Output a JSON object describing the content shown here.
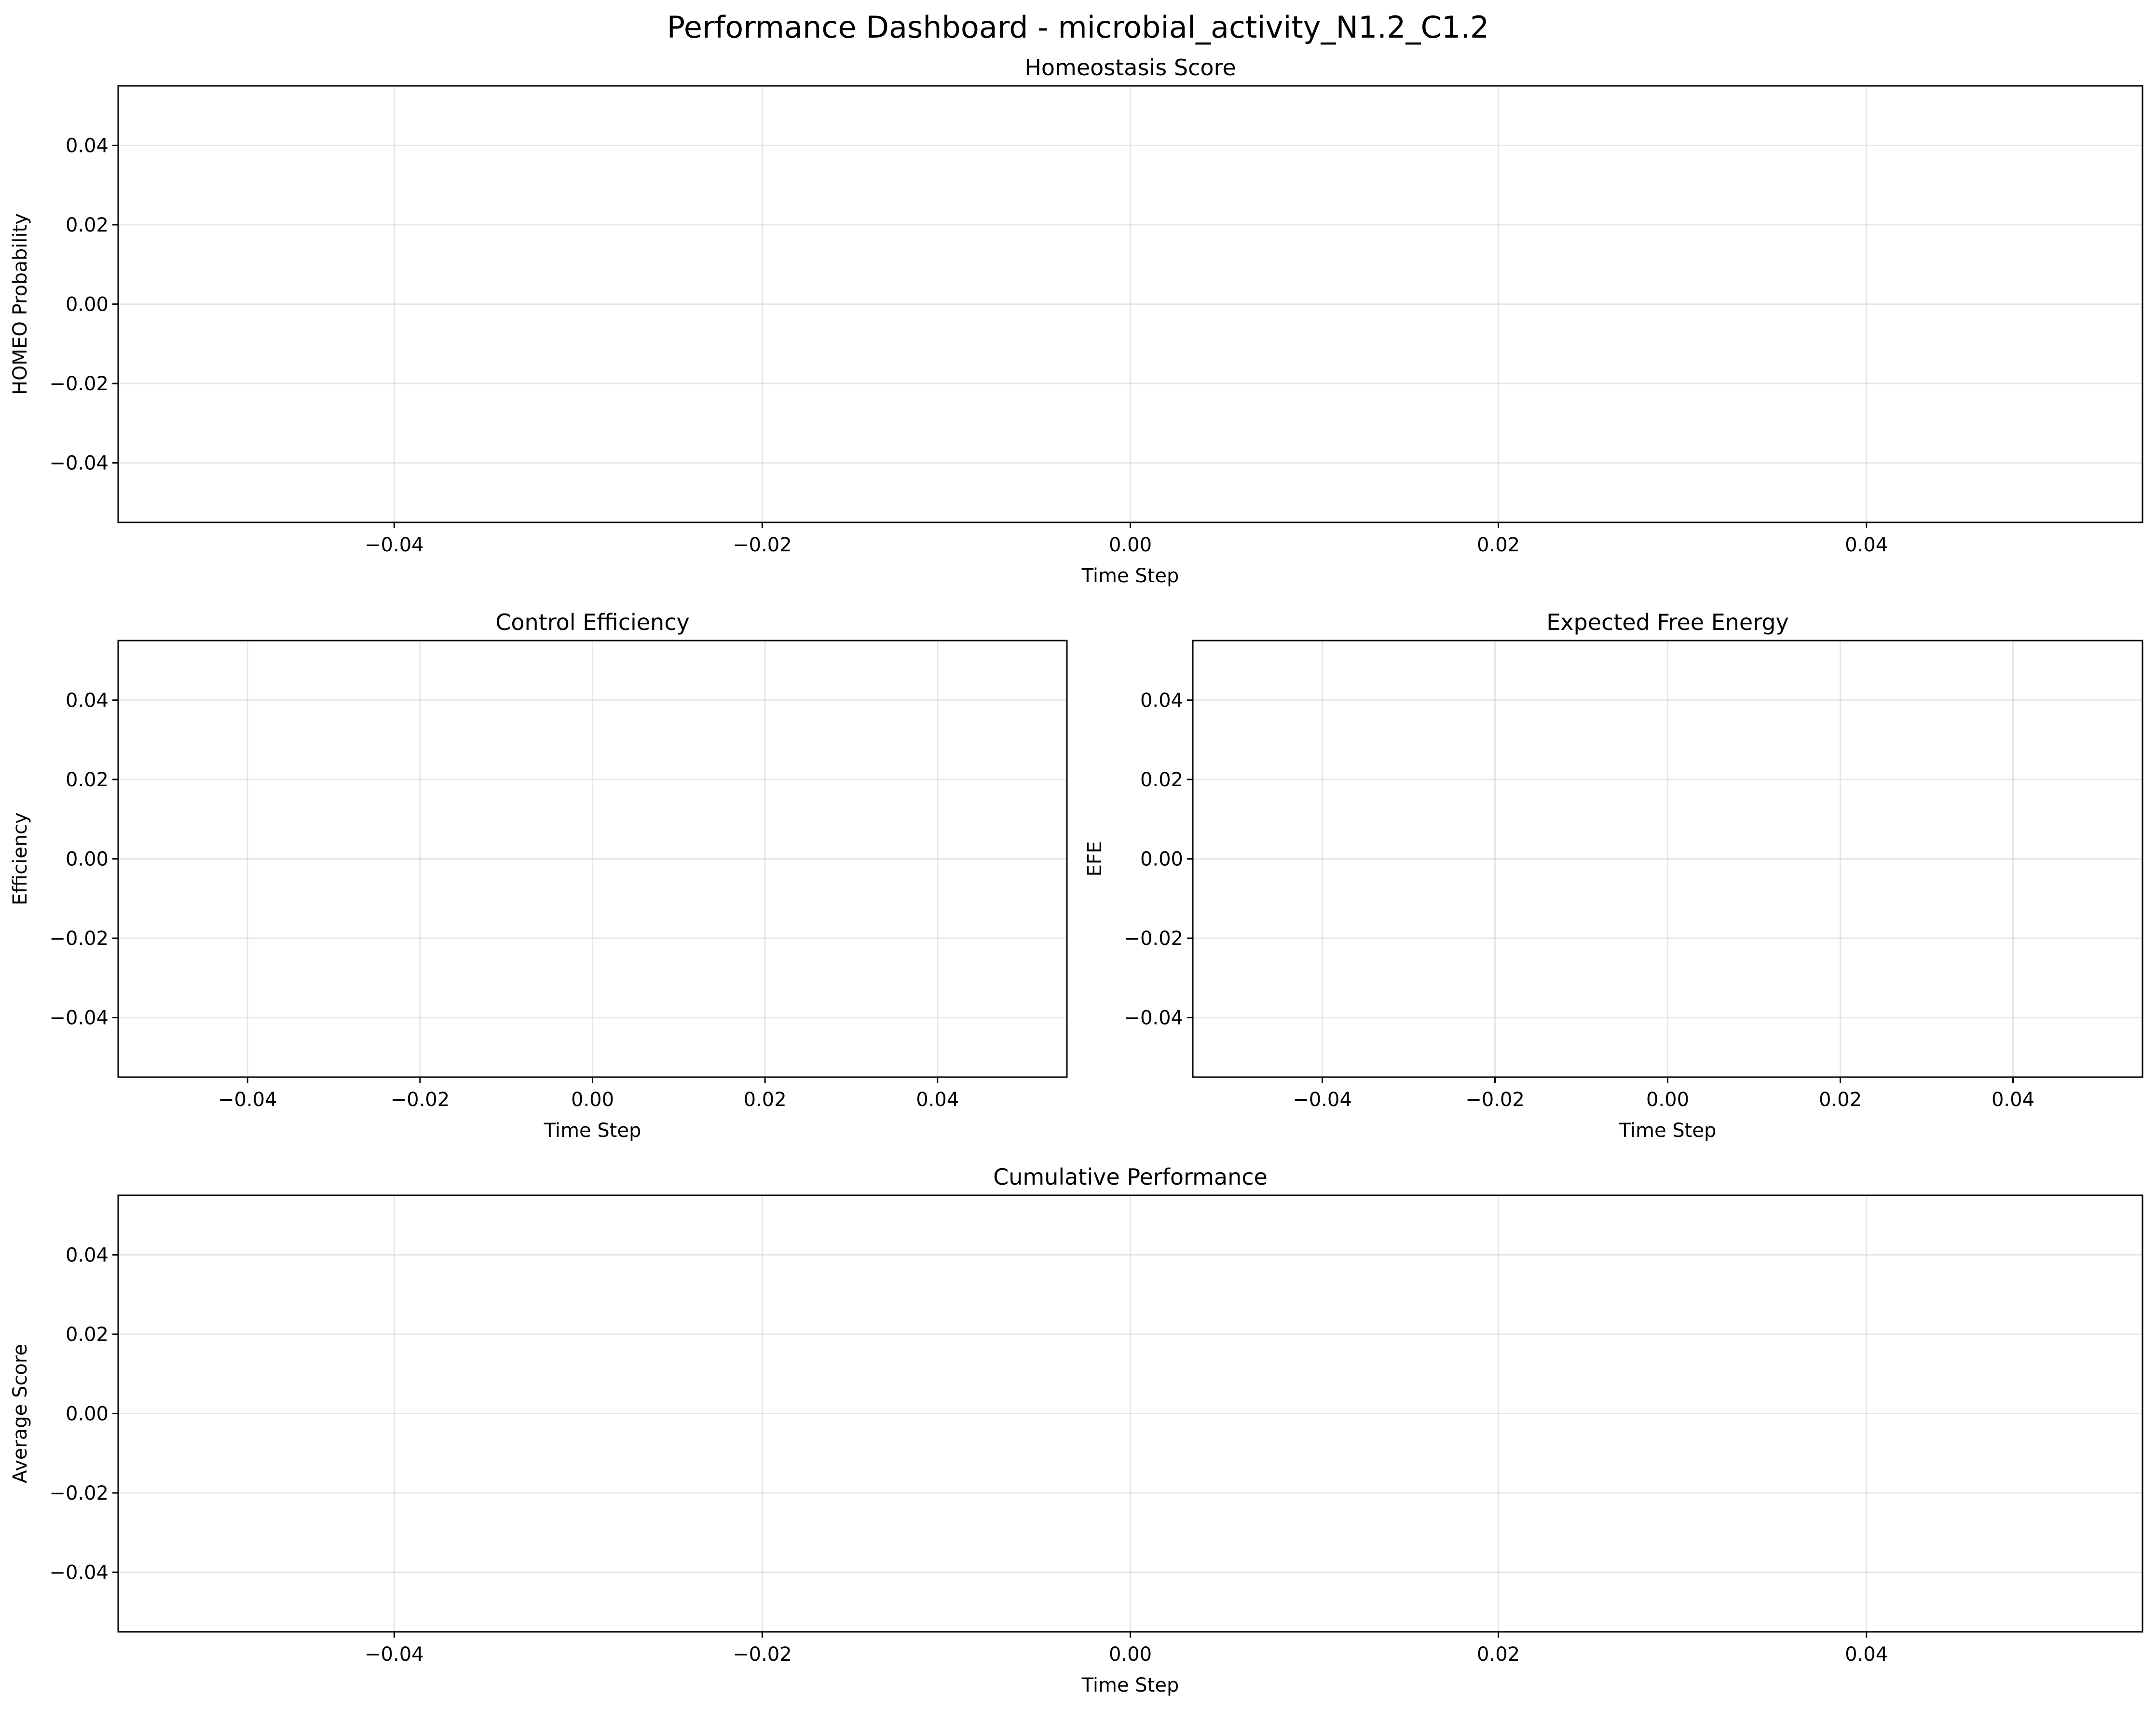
{
  "figure": {
    "suptitle": "Performance Dashboard - microbial_activity_N1.2_C1.2"
  },
  "chart_data": [
    {
      "id": "homeostasis",
      "type": "line",
      "title": "Homeostasis Score",
      "xlabel": "Time Step",
      "ylabel": "HOMEO Probability",
      "xlim": [
        -0.055,
        0.055
      ],
      "ylim": [
        -0.055,
        0.055
      ],
      "xticks": [
        -0.04,
        -0.02,
        0.0,
        0.02,
        0.04
      ],
      "yticks": [
        -0.04,
        -0.02,
        0.0,
        0.02,
        0.04
      ],
      "xtick_labels": [
        "−0.04",
        "−0.02",
        "0.00",
        "0.02",
        "0.04"
      ],
      "ytick_labels": [
        "−0.04",
        "−0.02",
        "0.00",
        "0.02",
        "0.04"
      ],
      "grid": true,
      "series": []
    },
    {
      "id": "efficiency",
      "type": "line",
      "title": "Control Efficiency",
      "xlabel": "Time Step",
      "ylabel": "Efficiency",
      "xlim": [
        -0.055,
        0.055
      ],
      "ylim": [
        -0.055,
        0.055
      ],
      "xticks": [
        -0.04,
        -0.02,
        0.0,
        0.02,
        0.04
      ],
      "yticks": [
        -0.04,
        -0.02,
        0.0,
        0.02,
        0.04
      ],
      "xtick_labels": [
        "−0.04",
        "−0.02",
        "0.00",
        "0.02",
        "0.04"
      ],
      "ytick_labels": [
        "−0.04",
        "−0.02",
        "0.00",
        "0.02",
        "0.04"
      ],
      "grid": true,
      "series": []
    },
    {
      "id": "efe",
      "type": "line",
      "title": "Expected Free Energy",
      "xlabel": "Time Step",
      "ylabel": "EFE",
      "xlim": [
        -0.055,
        0.055
      ],
      "ylim": [
        -0.055,
        0.055
      ],
      "xticks": [
        -0.04,
        -0.02,
        0.0,
        0.02,
        0.04
      ],
      "yticks": [
        -0.04,
        -0.02,
        0.0,
        0.02,
        0.04
      ],
      "xtick_labels": [
        "−0.04",
        "−0.02",
        "0.00",
        "0.02",
        "0.04"
      ],
      "ytick_labels": [
        "−0.04",
        "−0.02",
        "0.00",
        "0.02",
        "0.04"
      ],
      "grid": true,
      "series": []
    },
    {
      "id": "cumulative",
      "type": "line",
      "title": "Cumulative Performance",
      "xlabel": "Time Step",
      "ylabel": "Average Score",
      "xlim": [
        -0.055,
        0.055
      ],
      "ylim": [
        -0.055,
        0.055
      ],
      "xticks": [
        -0.04,
        -0.02,
        0.0,
        0.02,
        0.04
      ],
      "yticks": [
        -0.04,
        -0.02,
        0.0,
        0.02,
        0.04
      ],
      "xtick_labels": [
        "−0.04",
        "−0.02",
        "0.00",
        "0.02",
        "0.04"
      ],
      "ytick_labels": [
        "−0.04",
        "−0.02",
        "0.00",
        "0.02",
        "0.04"
      ],
      "grid": true,
      "series": []
    }
  ]
}
